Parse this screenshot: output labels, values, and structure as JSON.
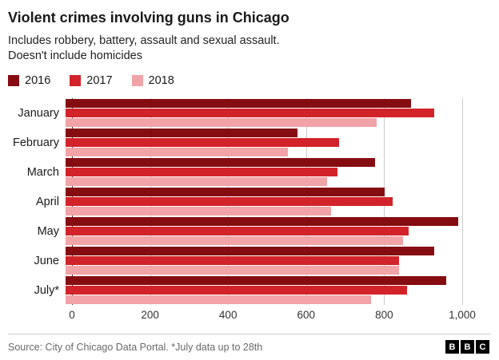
{
  "header": {
    "title": "Violent crimes involving guns in Chicago",
    "subtitle": "Includes robbery, battery, assault and sexual assault.\nDoesn't include homicides"
  },
  "chart_data": {
    "type": "bar",
    "orientation": "horizontal",
    "title": "Violent crimes involving guns in Chicago",
    "subtitle": "Includes robbery, battery, assault and sexual assault. Doesn't include homicides",
    "categories": [
      "January",
      "February",
      "March",
      "April",
      "May",
      "June",
      "July*"
    ],
    "series": [
      {
        "name": "2016",
        "color": "#850d12",
        "values": [
          870,
          585,
          780,
          805,
          990,
          930,
          960
        ]
      },
      {
        "name": "2017",
        "color": "#d2232a",
        "values": [
          930,
          690,
          685,
          825,
          865,
          840,
          860
        ]
      },
      {
        "name": "2018",
        "color": "#f1a3a7",
        "values": [
          785,
          560,
          660,
          670,
          850,
          840,
          770
        ]
      }
    ],
    "xlim": [
      0,
      1000
    ],
    "xticks": [
      0,
      200,
      400,
      600,
      800,
      1000
    ],
    "xtick_labels": [
      "0",
      "200",
      "400",
      "600",
      "800",
      "1,000"
    ],
    "grid": true,
    "legend_position": "top",
    "xlabel": "",
    "ylabel": ""
  },
  "footer": {
    "source": "Source: City of Chicago Data Portal. *July data up to 28th",
    "logo_letters": [
      "B",
      "B",
      "C"
    ]
  }
}
